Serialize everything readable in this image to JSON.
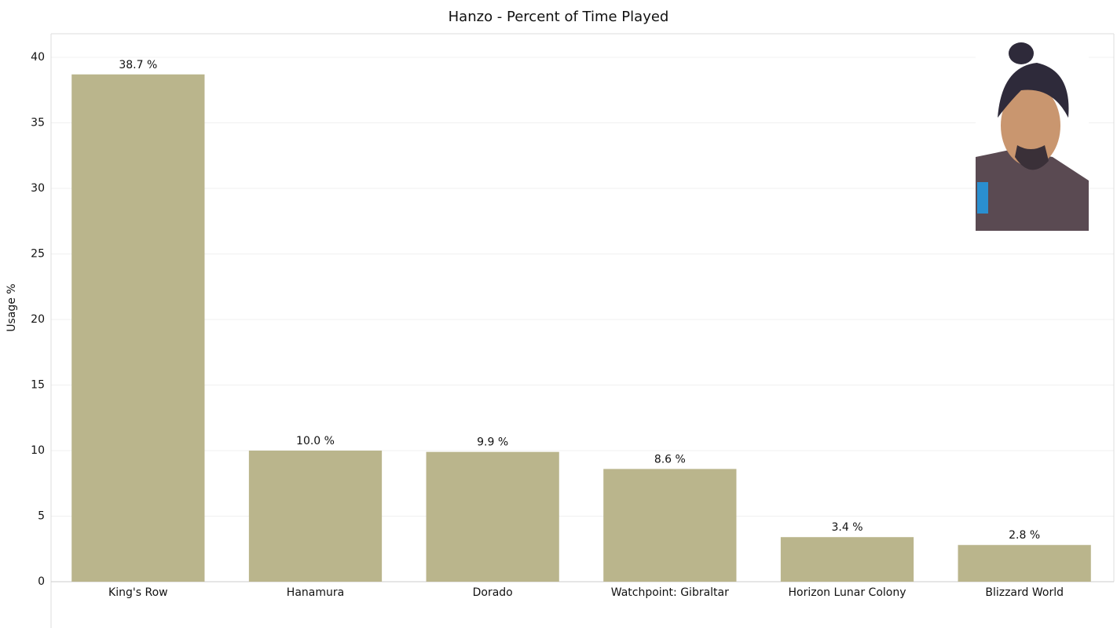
{
  "chart_data": {
    "type": "bar",
    "title": "Hanzo - Percent of Time Played",
    "y_label": "Usage %",
    "categories": [
      "King's Row",
      "Hanamura",
      "Dorado",
      "Watchpoint: Gibraltar",
      "Horizon Lunar Colony",
      "Blizzard World"
    ],
    "values": [
      38.7,
      10.0,
      9.9,
      8.6,
      3.4,
      2.8
    ],
    "value_labels": [
      "38.7 %",
      "10.0 %",
      "9.9 %",
      "8.6 %",
      "3.4 %",
      "2.8 %"
    ],
    "color": "#bab58c",
    "ylim": [
      0,
      41.8
    ],
    "yticks": [
      0,
      5,
      10,
      15,
      20,
      25,
      30,
      35,
      40
    ],
    "grid": true
  }
}
